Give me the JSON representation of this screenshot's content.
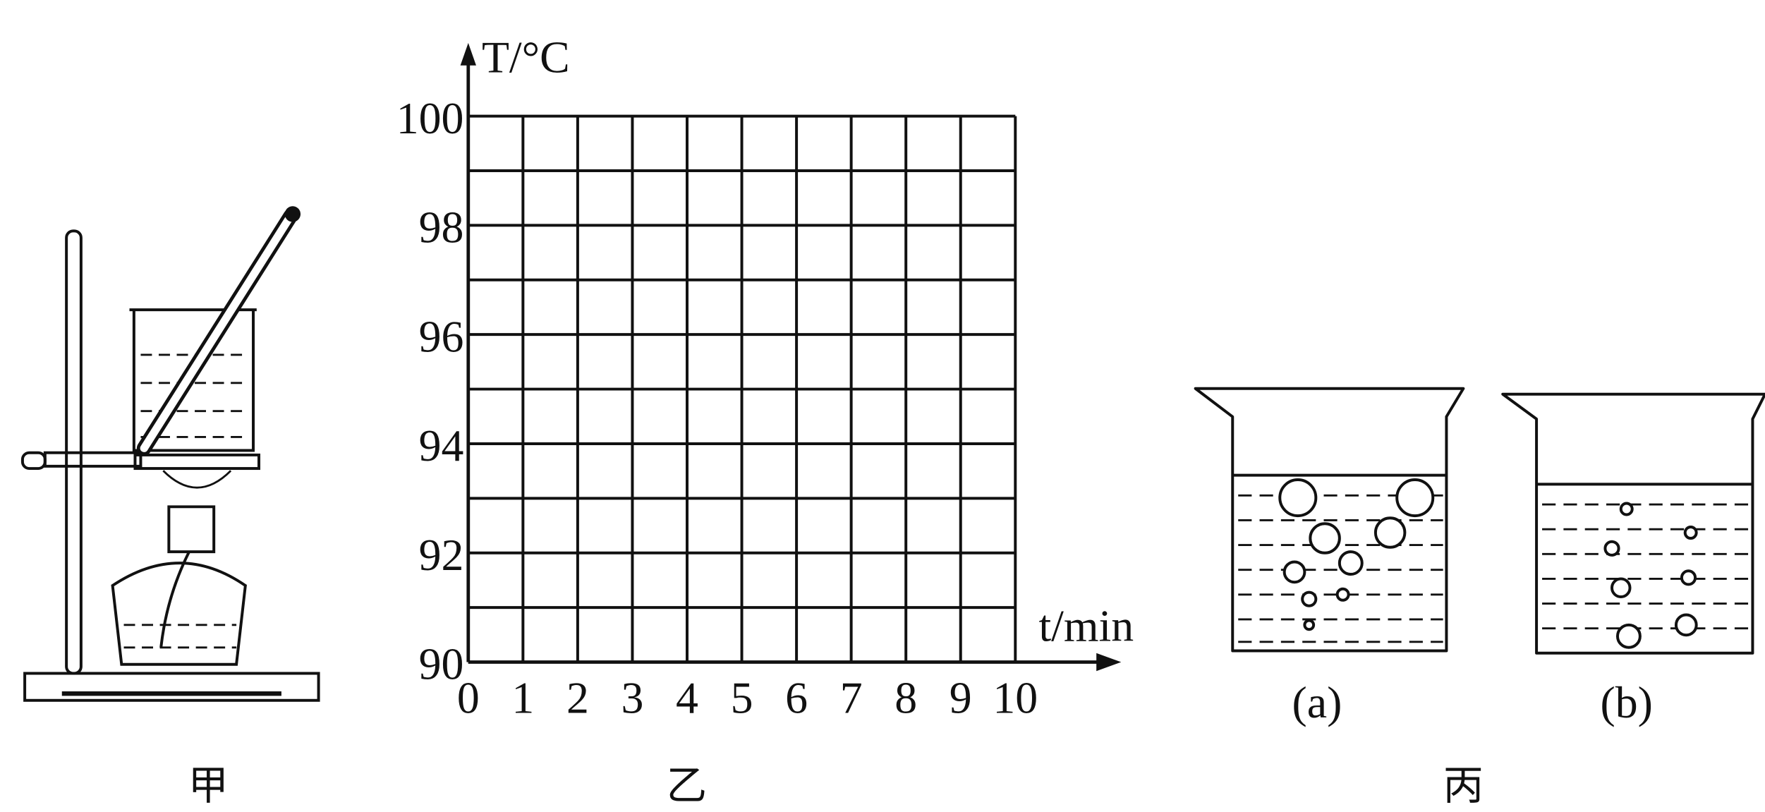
{
  "chart_data": {
    "type": "grid",
    "xlabel": "t/min",
    "ylabel": "T/°C",
    "xlim": [
      0,
      10
    ],
    "ylim": [
      90,
      100
    ],
    "xticks": [
      0,
      1,
      2,
      3,
      4,
      5,
      6,
      7,
      8,
      9,
      10
    ],
    "yticks": [
      90,
      92,
      94,
      96,
      98,
      100
    ],
    "yminorticks": [
      91,
      93,
      95,
      97,
      99
    ],
    "grid": true
  },
  "labels": {
    "apparatus": "甲",
    "graph": "乙",
    "beakers": "丙",
    "beaker_a": "(a)",
    "beaker_b": "(b)"
  }
}
